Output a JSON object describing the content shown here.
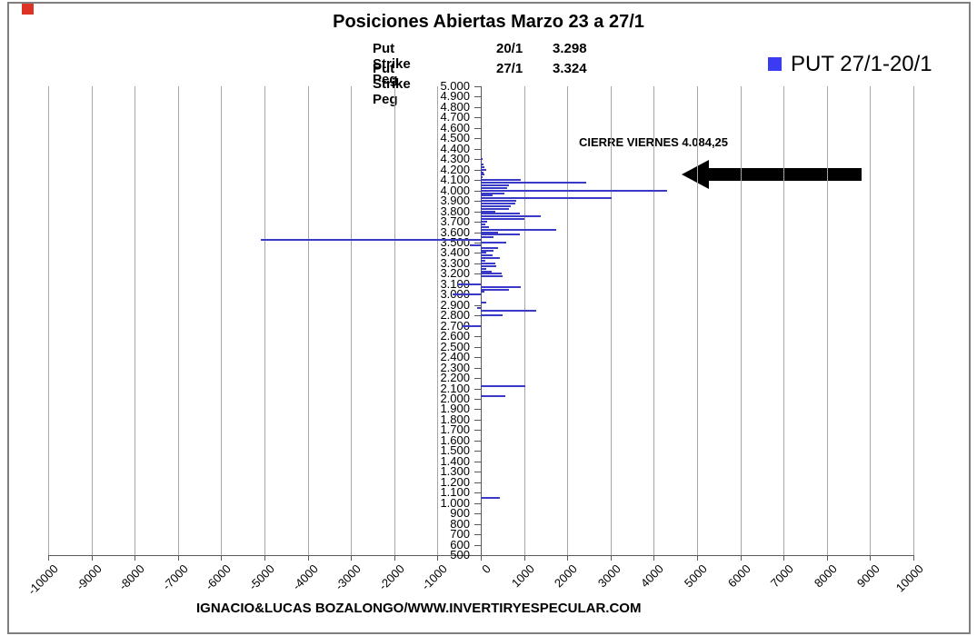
{
  "title": "Posiciones Abiertas Marzo 23 a 27/1",
  "subtitles": [
    {
      "label": "Put Strike Peg",
      "date": "20/1",
      "value": "3.298"
    },
    {
      "label": "Put Strike Peg",
      "date": "27/1",
      "value": "3.324"
    }
  ],
  "legend": {
    "label": "PUT 27/1-20/1",
    "position": "top-right"
  },
  "annotation": {
    "text": "CIERRE VIERNES 4.084,25",
    "arrow_direction": "left"
  },
  "footer": "IGNACIO&LUCAS BOZALONGO/WWW.INVERTIRYESPECULAR.COM",
  "colors": {
    "bar": "#3a3ac9",
    "legend_swatch": "#3b3cf2",
    "grid": "#a6a6a6",
    "axis": "#595959",
    "frame": "#7f7f7f",
    "arrow": "#000000",
    "red_marker": "#dd3226",
    "text": "#000000"
  },
  "chart_data": {
    "type": "bar",
    "orientation": "horizontal",
    "title": "Posiciones Abiertas Marzo 23 a 27/1",
    "grid": true,
    "legend_position": "top-right",
    "value_axis": {
      "min": -10000,
      "max": 10000,
      "tick_step": 1000,
      "tick_labels": [
        "-10000",
        "-9000",
        "-8000",
        "-7000",
        "-6000",
        "-5000",
        "-4000",
        "-3000",
        "-2000",
        "-1000",
        "0",
        "1000",
        "2000",
        "3000",
        "4000",
        "5000",
        "6000",
        "7000",
        "8000",
        "9000",
        "10000"
      ]
    },
    "category_axis": {
      "min": 500,
      "max": 5000,
      "tick_step": 100,
      "tick_labels": [
        "5.000",
        "4.900",
        "4.800",
        "4.700",
        "4.600",
        "4.500",
        "4.400",
        "4.300",
        "4.200",
        "4.100",
        "4.000",
        "3.900",
        "3.800",
        "3.700",
        "3.600",
        "3.500",
        "3.400",
        "3.300",
        "3.200",
        "3.100",
        "3.000",
        "2.900",
        "2.800",
        "2.700",
        "2.600",
        "2.500",
        "2.400",
        "2.300",
        "2.200",
        "2.100",
        "2.000",
        "1.900",
        "1.800",
        "1.700",
        "1.600",
        "1.500",
        "1.400",
        "1.300",
        "1.200",
        "1.100",
        "1.000",
        "900",
        "800",
        "700",
        "600",
        "500"
      ]
    },
    "series": [
      {
        "name": "PUT 27/1-20/1",
        "points": [
          {
            "strike": 4300,
            "value": 40
          },
          {
            "strike": 4275,
            "value": 30
          },
          {
            "strike": 4250,
            "value": 60
          },
          {
            "strike": 4225,
            "value": 90
          },
          {
            "strike": 4200,
            "value": 120
          },
          {
            "strike": 4175,
            "value": 60
          },
          {
            "strike": 4150,
            "value": 80
          },
          {
            "strike": 4125,
            "value": 50
          },
          {
            "strike": 4100,
            "value": 930
          },
          {
            "strike": 4075,
            "value": 2440
          },
          {
            "strike": 4050,
            "value": 650
          },
          {
            "strike": 4025,
            "value": 600
          },
          {
            "strike": 4000,
            "value": 4300
          },
          {
            "strike": 3975,
            "value": 550
          },
          {
            "strike": 3950,
            "value": 270
          },
          {
            "strike": 3925,
            "value": 3030
          },
          {
            "strike": 3900,
            "value": 820
          },
          {
            "strike": 3875,
            "value": 800
          },
          {
            "strike": 3850,
            "value": 690
          },
          {
            "strike": 3825,
            "value": 650
          },
          {
            "strike": 3800,
            "value": 340
          },
          {
            "strike": 3775,
            "value": 900
          },
          {
            "strike": 3750,
            "value": 1390
          },
          {
            "strike": 3725,
            "value": 1000
          },
          {
            "strike": 3700,
            "value": 150
          },
          {
            "strike": 3675,
            "value": 100
          },
          {
            "strike": 3650,
            "value": 190
          },
          {
            "strike": 3625,
            "value": 1750
          },
          {
            "strike": 3600,
            "value": 400
          },
          {
            "strike": 3575,
            "value": 900
          },
          {
            "strike": 3550,
            "value": 300
          },
          {
            "strike": 3525,
            "value": -5080
          },
          {
            "strike": 3500,
            "value": 590
          },
          {
            "strike": 3475,
            "value": -250
          },
          {
            "strike": 3450,
            "value": 400
          },
          {
            "strike": 3425,
            "value": 290
          },
          {
            "strike": 3400,
            "value": 120
          },
          {
            "strike": 3375,
            "value": 270
          },
          {
            "strike": 3350,
            "value": 440
          },
          {
            "strike": 3325,
            "value": 100
          },
          {
            "strike": 3300,
            "value": 340
          },
          {
            "strike": 3275,
            "value": 360
          },
          {
            "strike": 3250,
            "value": 120
          },
          {
            "strike": 3225,
            "value": 250
          },
          {
            "strike": 3200,
            "value": 480
          },
          {
            "strike": 3175,
            "value": 500
          },
          {
            "strike": 3100,
            "value": -550
          },
          {
            "strike": 3075,
            "value": 930
          },
          {
            "strike": 3050,
            "value": 650
          },
          {
            "strike": 3025,
            "value": 80
          },
          {
            "strike": 3000,
            "value": -650
          },
          {
            "strike": 2925,
            "value": 120
          },
          {
            "strike": 2875,
            "value": -80
          },
          {
            "strike": 2850,
            "value": 1280
          },
          {
            "strike": 2800,
            "value": 500
          },
          {
            "strike": 2700,
            "value": -450
          },
          {
            "strike": 2125,
            "value": 1030
          },
          {
            "strike": 2025,
            "value": 570
          },
          {
            "strike": 1050,
            "value": 450
          }
        ]
      }
    ]
  }
}
